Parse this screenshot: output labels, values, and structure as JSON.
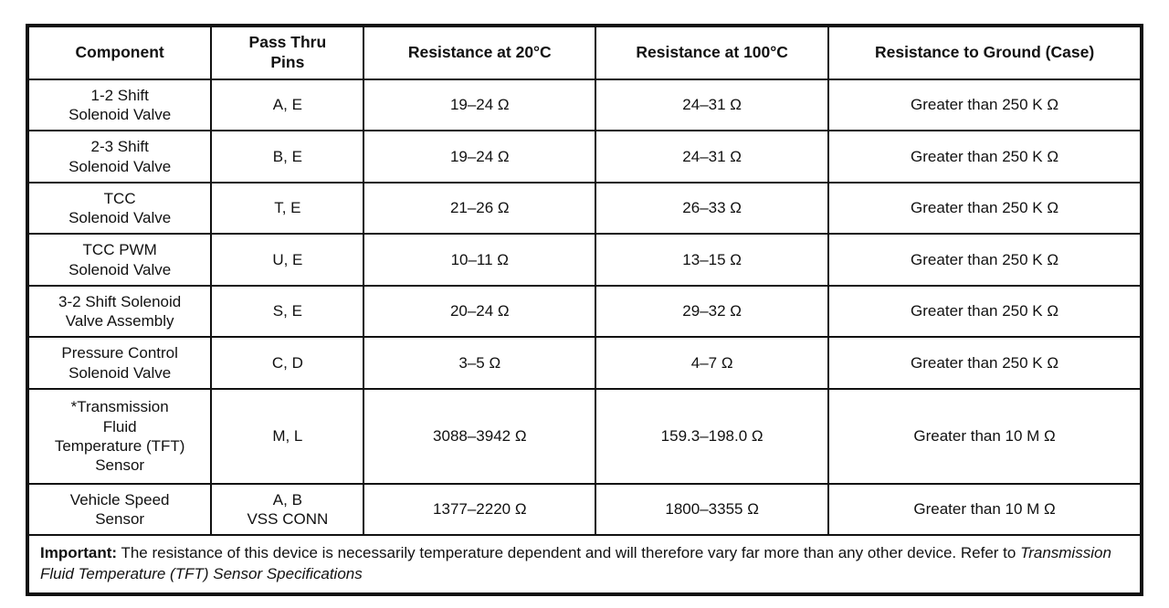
{
  "table": {
    "headers": [
      "Component",
      "Pass Thru\nPins",
      "Resistance at 20°C",
      "Resistance at 100°C",
      "Resistance to Ground (Case)"
    ],
    "rows": [
      {
        "component": "1-2 Shift\nSolenoid Valve",
        "pins": "A, E",
        "r20": "19–24 Ω",
        "r100": "24–31 Ω",
        "ground": "Greater than 250 K Ω"
      },
      {
        "component": "2-3 Shift\nSolenoid Valve",
        "pins": "B, E",
        "r20": "19–24 Ω",
        "r100": "24–31 Ω",
        "ground": "Greater than 250 K Ω"
      },
      {
        "component": "TCC\nSolenoid Valve",
        "pins": "T, E",
        "r20": "21–26 Ω",
        "r100": "26–33 Ω",
        "ground": "Greater than 250 K Ω"
      },
      {
        "component": "TCC PWM\nSolenoid Valve",
        "pins": "U, E",
        "r20": "10–11 Ω",
        "r100": "13–15 Ω",
        "ground": "Greater than 250 K Ω"
      },
      {
        "component": "3-2 Shift Solenoid\nValve Assembly",
        "pins": "S, E",
        "r20": "20–24 Ω",
        "r100": "29–32 Ω",
        "ground": "Greater than 250 K Ω"
      },
      {
        "component": "Pressure Control\nSolenoid Valve",
        "pins": "C, D",
        "r20": "3–5 Ω",
        "r100": "4–7 Ω",
        "ground": "Greater than 250 K Ω"
      },
      {
        "component": "*Transmission\nFluid\nTemperature (TFT)\nSensor",
        "pins": "M, L",
        "r20": "3088–3942 Ω",
        "r100": "159.3–198.0 Ω",
        "ground": "Greater than 10 M Ω"
      },
      {
        "component": "Vehicle Speed\nSensor",
        "pins": "A, B\nVSS CONN",
        "r20": "1377–2220 Ω",
        "r100": "1800–3355 Ω",
        "ground": "Greater than 10 M Ω"
      }
    ]
  },
  "footer": {
    "label": "Important:",
    "text": " The resistance of this device is necessarily temperature dependent and will therefore vary far more than any other device. Refer to ",
    "reference": "Transmission Fluid Temperature (TFT) Sensor Specifications"
  }
}
